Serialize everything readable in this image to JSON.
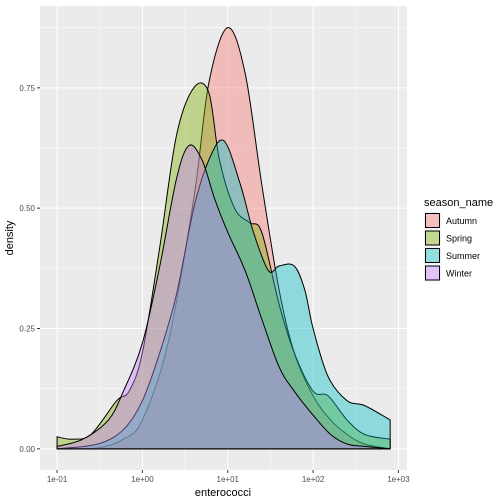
{
  "chart_data": {
    "type": "area",
    "xlabel": "enterococci",
    "ylabel": "density",
    "x_scale": "log10",
    "xlim": [
      0.0631,
      1260
    ],
    "ylim": [
      -0.044,
      0.92
    ],
    "x_ticks": [
      {
        "value": 0.1,
        "label": "1e-01"
      },
      {
        "value": 1,
        "label": "1e+00"
      },
      {
        "value": 10,
        "label": "1e+01"
      },
      {
        "value": 100,
        "label": "1e+02"
      },
      {
        "value": 1000,
        "label": "1e+03"
      }
    ],
    "y_ticks": [
      {
        "value": 0.0,
        "label": "0.00"
      },
      {
        "value": 0.25,
        "label": "0.25"
      },
      {
        "value": 0.5,
        "label": "0.50"
      },
      {
        "value": 0.75,
        "label": "0.75"
      }
    ],
    "grid": true,
    "legend_title": "season_name",
    "legend_position": "right",
    "series": [
      {
        "name": "Autumn",
        "color": "#F8766D",
        "points": [
          [
            0.1,
            0.0
          ],
          [
            0.3,
            0.002
          ],
          [
            0.6,
            0.02
          ],
          [
            1,
            0.06
          ],
          [
            2,
            0.22
          ],
          [
            4,
            0.52
          ],
          [
            6,
            0.76
          ],
          [
            10,
            0.875
          ],
          [
            16,
            0.78
          ],
          [
            25,
            0.55
          ],
          [
            40,
            0.33
          ],
          [
            60,
            0.2
          ],
          [
            100,
            0.11
          ],
          [
            160,
            0.06
          ],
          [
            250,
            0.03
          ],
          [
            400,
            0.01
          ],
          [
            800,
            0.0
          ]
        ]
      },
      {
        "name": "Spring",
        "color": "#7CAE00",
        "points": [
          [
            0.1,
            0.025
          ],
          [
            0.15,
            0.02
          ],
          [
            0.25,
            0.03
          ],
          [
            0.5,
            0.1
          ],
          [
            0.7,
            0.12
          ],
          [
            1,
            0.2
          ],
          [
            1.6,
            0.42
          ],
          [
            2.5,
            0.65
          ],
          [
            4,
            0.75
          ],
          [
            6,
            0.74
          ],
          [
            8,
            0.6
          ],
          [
            12,
            0.5
          ],
          [
            18,
            0.47
          ],
          [
            25,
            0.45
          ],
          [
            40,
            0.3
          ],
          [
            60,
            0.2
          ],
          [
            100,
            0.12
          ],
          [
            150,
            0.11
          ],
          [
            250,
            0.06
          ],
          [
            400,
            0.03
          ],
          [
            800,
            0.02
          ]
        ]
      },
      {
        "name": "Summer",
        "color": "#00BFC4",
        "points": [
          [
            0.1,
            0.0
          ],
          [
            0.3,
            0.01
          ],
          [
            0.6,
            0.04
          ],
          [
            1,
            0.1
          ],
          [
            1.6,
            0.2
          ],
          [
            2.5,
            0.32
          ],
          [
            4,
            0.5
          ],
          [
            6,
            0.6
          ],
          [
            9,
            0.64
          ],
          [
            14,
            0.55
          ],
          [
            20,
            0.45
          ],
          [
            30,
            0.37
          ],
          [
            40,
            0.38
          ],
          [
            60,
            0.38
          ],
          [
            80,
            0.33
          ],
          [
            100,
            0.25
          ],
          [
            150,
            0.15
          ],
          [
            250,
            0.1
          ],
          [
            400,
            0.09
          ],
          [
            800,
            0.06
          ]
        ]
      },
      {
        "name": "Winter",
        "color": "#C77CFF",
        "points": [
          [
            0.1,
            0.005
          ],
          [
            0.2,
            0.02
          ],
          [
            0.4,
            0.06
          ],
          [
            0.6,
            0.12
          ],
          [
            1,
            0.22
          ],
          [
            1.6,
            0.38
          ],
          [
            2.5,
            0.56
          ],
          [
            3.5,
            0.63
          ],
          [
            5,
            0.6
          ],
          [
            7,
            0.52
          ],
          [
            10,
            0.45
          ],
          [
            16,
            0.37
          ],
          [
            25,
            0.27
          ],
          [
            40,
            0.17
          ],
          [
            60,
            0.12
          ],
          [
            100,
            0.07
          ],
          [
            160,
            0.03
          ],
          [
            250,
            0.01
          ],
          [
            400,
            0.005
          ],
          [
            800,
            0.0
          ]
        ]
      }
    ]
  }
}
